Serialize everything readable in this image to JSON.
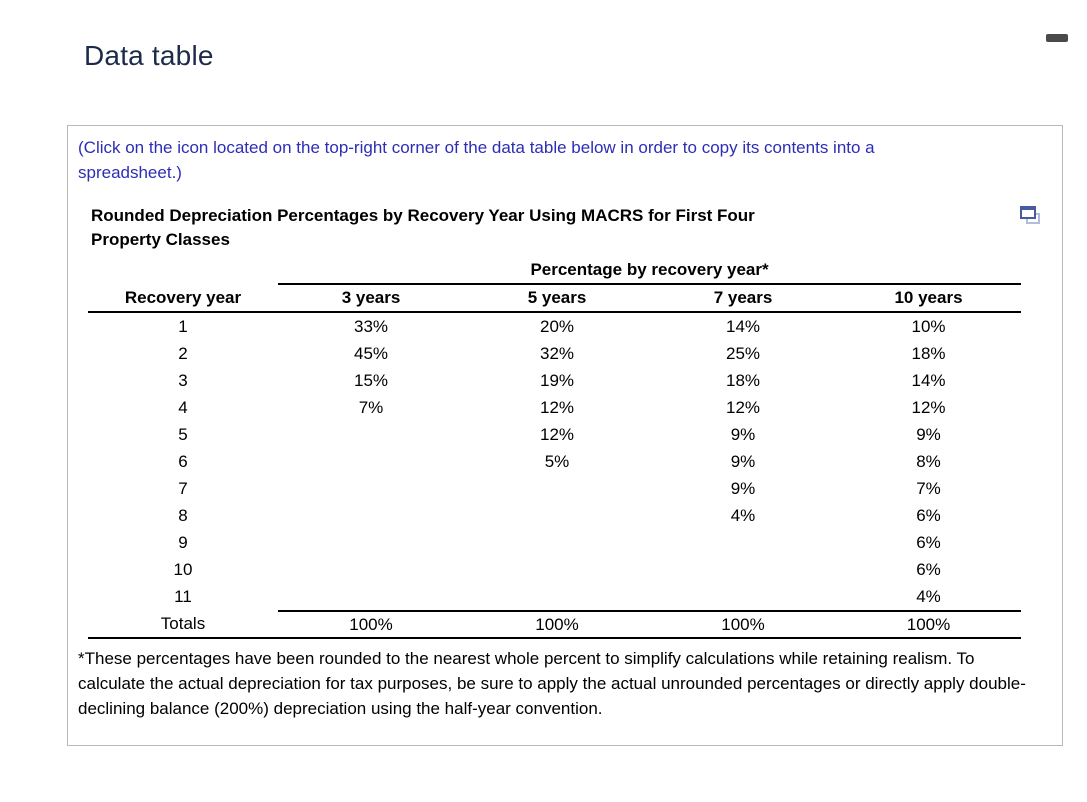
{
  "page": {
    "title": "Data table"
  },
  "panel": {
    "instruction": "(Click on the icon located on the top-right corner of the data table below in order to copy its contents into a spreadsheet.)",
    "table": {
      "title": "Rounded Depreciation Percentages by Recovery Year Using MACRS for First Four Property Classes",
      "span_header": "Percentage by recovery year*",
      "columns": [
        "Recovery year",
        "3 years",
        "5 years",
        "7 years",
        "10 years"
      ],
      "rows": [
        [
          "1",
          "33%",
          "20%",
          "14%",
          "10%"
        ],
        [
          "2",
          "45%",
          "32%",
          "25%",
          "18%"
        ],
        [
          "3",
          "15%",
          "19%",
          "18%",
          "14%"
        ],
        [
          "4",
          "7%",
          "12%",
          "12%",
          "12%"
        ],
        [
          "5",
          "",
          "12%",
          "9%",
          "9%"
        ],
        [
          "6",
          "",
          "5%",
          "9%",
          "8%"
        ],
        [
          "7",
          "",
          "",
          "9%",
          "7%"
        ],
        [
          "8",
          "",
          "",
          "4%",
          "6%"
        ],
        [
          "9",
          "",
          "",
          "",
          "6%"
        ],
        [
          "10",
          "",
          "",
          "",
          "6%"
        ],
        [
          "11",
          "",
          "",
          "",
          "4%"
        ]
      ],
      "totals": [
        "Totals",
        "100%",
        "100%",
        "100%",
        "100%"
      ]
    },
    "footnote": "*These percentages have been rounded to the nearest whole percent to simplify calculations while retaining realism. To calculate the actual depreciation for tax purposes, be sure to apply the actual unrounded percentages or directly apply double-declining balance (200%) depreciation using the half-year convention."
  },
  "icons": {
    "minimize_icon": "minimize-dash",
    "copy_icon": "copy-table-to-spreadsheet"
  },
  "colors": {
    "heading": "#1c2b4a",
    "instruction_blue": "#2d2db5",
    "panel_border": "#b9b9b9",
    "table_rule": "#000000",
    "minimize_dash": "#4a4a4a",
    "copy_icon_front": "#4a5aa0",
    "copy_icon_back": "#b4bcde"
  }
}
